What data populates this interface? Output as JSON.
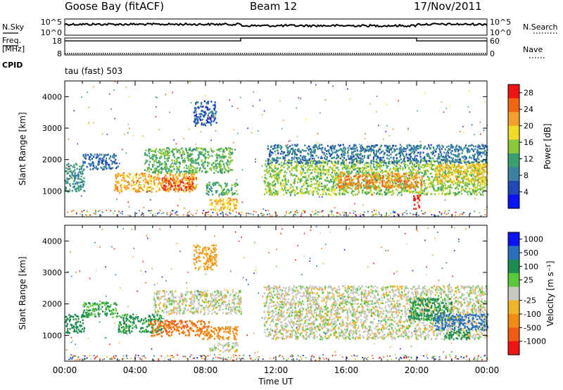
{
  "header": {
    "station": "Goose Bay (fitACF)",
    "beam": "Beam 12",
    "date": "17/Nov/2011"
  },
  "left_labels": {
    "nsky": "N.Sky",
    "nsky_ticks": [
      "10^5",
      "10^0"
    ],
    "freq_line1": "Freq.",
    "freq_line2": "[MHz]",
    "freq_ticks": [
      "18",
      "8"
    ],
    "cpid": "CPID",
    "cpid_value": "tau (fast) 503"
  },
  "right_labels": {
    "nsearch": "N.Search",
    "nsearch_ticks": [
      "10^5",
      "10^0"
    ],
    "nave": "Nave",
    "nave_ticks": [
      "60",
      "0"
    ]
  },
  "colors": {
    "power": [
      "#0a14f0",
      "#2248b8",
      "#3a82a0",
      "#3aa070",
      "#8cc83c",
      "#f0dc28",
      "#f0a028",
      "#f06414",
      "#f01414"
    ],
    "velocity": [
      "#0a14f0",
      "#2a6fbe",
      "#1e8c50",
      "#5ac83c",
      "#c8c8c0",
      "#f0b428",
      "#f08c14",
      "#f05a14",
      "#f01414"
    ],
    "ground_scatter": "#c0c0b8"
  },
  "chart_data": [
    {
      "type": "line",
      "panel": "noise",
      "series": [
        {
          "name": "N.Sky",
          "note": "log scale 10^0..10^5, plotted near 10^4 throughout"
        },
        {
          "name": "N.Search",
          "note": "log scale 10^0..10^5"
        }
      ],
      "yticks_left": [
        "10^5",
        "10^0"
      ],
      "yticks_right": [
        "10^5",
        "10^0"
      ]
    },
    {
      "type": "line",
      "panel": "frequency",
      "series": [
        {
          "name": "Freq.",
          "x": [
            0,
            10,
            10,
            20,
            20,
            24
          ],
          "y": [
            16.3,
            16.3,
            18,
            18,
            16.3,
            16.3
          ]
        },
        {
          "name": "Nave",
          "x": [
            0,
            24
          ],
          "y": [
            5,
            5
          ]
        }
      ],
      "ylim_left": [
        8,
        18
      ],
      "ylim_right": [
        0,
        60
      ],
      "xlim": [
        0,
        24
      ]
    },
    {
      "type": "heatmap",
      "panel": "power",
      "xlabel": "",
      "ylabel": "Slant Range [km]",
      "xlim": [
        0,
        24
      ],
      "ylim": [
        180,
        4500
      ],
      "yticks": [
        1000,
        2000,
        3000,
        4000
      ],
      "colorbar_label": "Power [dB]",
      "colorbar_ticks": [
        4,
        8,
        12,
        16,
        20,
        24,
        28
      ],
      "colorbar_range": [
        0,
        30
      ],
      "regions": [
        {
          "t0": 0.0,
          "t1": 1.1,
          "r0": 1000,
          "r1": 1900,
          "level": 10
        },
        {
          "t0": 1.0,
          "t1": 3.0,
          "r0": 1700,
          "r1": 2200,
          "level": 7
        },
        {
          "t0": 2.8,
          "t1": 7.5,
          "r0": 1000,
          "r1": 1600,
          "level": 21
        },
        {
          "t0": 5.5,
          "t1": 7.3,
          "r0": 1050,
          "r1": 1450,
          "level": 26
        },
        {
          "t0": 4.5,
          "t1": 9.5,
          "r0": 1600,
          "r1": 2400,
          "level": 13
        },
        {
          "t0": 8.0,
          "t1": 9.8,
          "r0": 900,
          "r1": 1300,
          "level": 12
        },
        {
          "t0": 8.2,
          "t1": 9.8,
          "r0": 400,
          "r1": 800,
          "level": 20
        },
        {
          "t0": 7.3,
          "t1": 8.6,
          "r0": 3100,
          "r1": 3900,
          "level": 6
        },
        {
          "t0": 11.3,
          "t1": 24.0,
          "r0": 900,
          "r1": 2000,
          "level": 15
        },
        {
          "t0": 11.5,
          "t1": 24.0,
          "r0": 1900,
          "r1": 2500,
          "level": 8
        },
        {
          "t0": 15.5,
          "t1": 20.3,
          "r0": 1100,
          "r1": 1600,
          "level": 23
        },
        {
          "t0": 19.8,
          "t1": 20.2,
          "r0": 450,
          "r1": 900,
          "level": 28
        },
        {
          "t0": 21.0,
          "t1": 24.0,
          "r0": 1300,
          "r1": 1900,
          "level": 20
        }
      ]
    },
    {
      "type": "heatmap",
      "panel": "velocity",
      "xlabel": "Time UT",
      "ylabel": "Slant Range [km]",
      "xlim": [
        0,
        24
      ],
      "ylim": [
        180,
        4500
      ],
      "yticks": [
        1000,
        2000,
        3000,
        4000
      ],
      "xticks": [
        "00:00",
        "04:00",
        "08:00",
        "12:00",
        "16:00",
        "20:00",
        "00:00"
      ],
      "colorbar_label": "Velocity [m s⁻¹]",
      "colorbar_ticks": [
        "1000",
        "500",
        "100",
        "25",
        "-25",
        "-100",
        "-500",
        "-1000"
      ],
      "regions": [
        {
          "t0": 0.0,
          "t1": 1.1,
          "r0": 1100,
          "r1": 1700,
          "level": 150
        },
        {
          "t0": 1.0,
          "t1": 3.0,
          "r0": 1600,
          "r1": 2100,
          "level": 60
        },
        {
          "t0": 3.0,
          "t1": 5.5,
          "r0": 1100,
          "r1": 1700,
          "level": 80
        },
        {
          "t0": 4.8,
          "t1": 8.2,
          "r0": 1000,
          "r1": 1500,
          "level": -300
        },
        {
          "t0": 5.0,
          "t1": 10.0,
          "r0": 1700,
          "r1": 2450,
          "level": 0
        },
        {
          "t0": 7.8,
          "t1": 9.8,
          "r0": 900,
          "r1": 1300,
          "level": -200
        },
        {
          "t0": 8.2,
          "t1": 9.8,
          "r0": 500,
          "r1": 800,
          "level": 0
        },
        {
          "t0": 7.3,
          "t1": 8.6,
          "r0": 3100,
          "r1": 3900,
          "level": -60
        },
        {
          "t0": 11.3,
          "t1": 24.0,
          "r0": 900,
          "r1": 2600,
          "level": 0
        },
        {
          "t0": 19.5,
          "t1": 22.0,
          "r0": 1500,
          "r1": 2200,
          "level": 80
        },
        {
          "t0": 21.5,
          "t1": 23.0,
          "r0": 900,
          "r1": 1200,
          "level": 120
        },
        {
          "t0": 21.0,
          "t1": 24.0,
          "r0": 1200,
          "r1": 1700,
          "level": 500
        }
      ]
    }
  ]
}
